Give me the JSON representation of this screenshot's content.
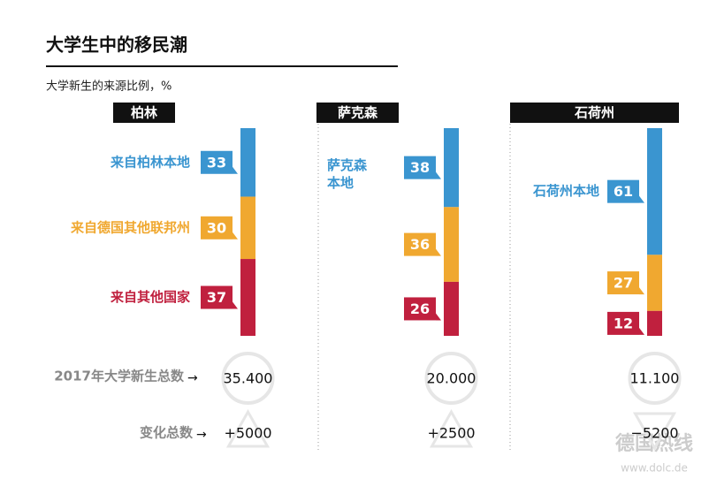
{
  "title": "大学生中的移民潮",
  "subtitle": "大学新生的来源比例，%",
  "total_row_label": "2017年大学新生总数",
  "change_row_label": "变化总数",
  "watermark": [
    "德国热线",
    "www.dolc.de"
  ],
  "chart_data": [
    {
      "type": "stacked-bar",
      "title": "柏林",
      "series": [
        {
          "name": "来自柏林本地",
          "color": "#3a95d0",
          "values": [
            33
          ]
        },
        {
          "name": "来自德国其他联邦州",
          "color": "#f0a830",
          "values": [
            30
          ]
        },
        {
          "name": "来自其他国家",
          "color": "#c0203e",
          "values": [
            37
          ]
        }
      ],
      "total": 35400,
      "total_label": "35.400",
      "change": 5000,
      "change_label": "+5000"
    },
    {
      "type": "stacked-bar",
      "title": "萨克森",
      "series": [
        {
          "name": "萨克森本地",
          "color": "#3a95d0",
          "values": [
            38
          ]
        },
        {
          "name": null,
          "color": "#f0a830",
          "values": [
            36
          ]
        },
        {
          "name": null,
          "color": "#c0203e",
          "values": [
            26
          ]
        }
      ],
      "total": 20000,
      "total_label": "20.000",
      "change": 2500,
      "change_label": "+2500"
    },
    {
      "type": "stacked-bar",
      "title": "石荷州",
      "series": [
        {
          "name": "石荷州本地",
          "color": "#3a95d0",
          "values": [
            61
          ]
        },
        {
          "name": null,
          "color": "#f0a830",
          "values": [
            27
          ]
        },
        {
          "name": null,
          "color": "#c0203e",
          "values": [
            12
          ]
        }
      ],
      "total": 11100,
      "total_label": "11.100",
      "change": -5200,
      "change_label": "−5200"
    }
  ]
}
